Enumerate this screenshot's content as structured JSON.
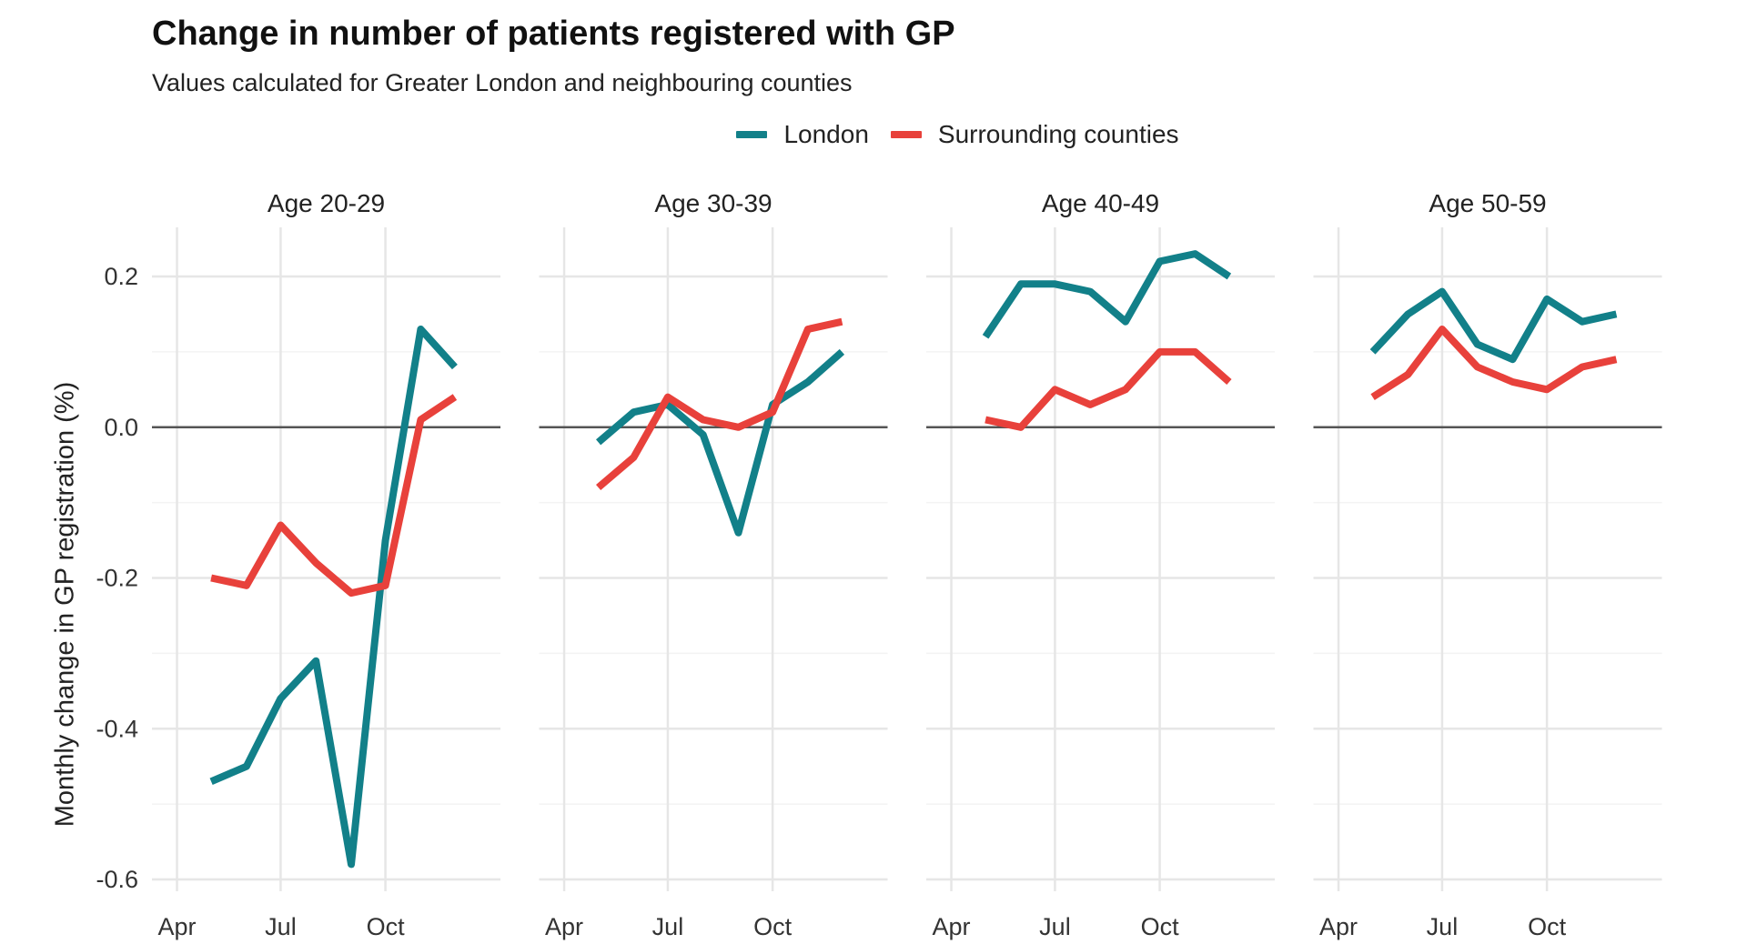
{
  "chart_data": {
    "type": "line",
    "title": "Change in number of patients registered with GP",
    "subtitle": "Values calculated for Greater London and neighbouring counties",
    "ylabel": "Monthly change in GP registration (%)",
    "xlabel": "",
    "ylim": [
      -0.62,
      0.25
    ],
    "y_ticks": [
      -0.6,
      -0.4,
      -0.2,
      0.0,
      0.2
    ],
    "y_tick_labels": [
      "-0.6",
      "-0.4",
      "-0.2",
      "0.0",
      "0.2"
    ],
    "x_ticks": [
      "Apr",
      "Jul",
      "Oct"
    ],
    "x_domain": [
      "2020-03-10",
      "2021-01-10"
    ],
    "x": [
      "2020-05-01",
      "2020-06-01",
      "2020-07-01",
      "2020-08-01",
      "2020-09-01",
      "2020-10-01",
      "2020-11-01",
      "2020-12-01"
    ],
    "legend_position": "top",
    "grid": true,
    "colors": {
      "London": "#128089",
      "Surrounding counties": "#e8413b"
    },
    "facets": [
      {
        "label": "Age 20-29",
        "series": [
          {
            "name": "London",
            "values": [
              -0.47,
              -0.45,
              -0.36,
              -0.31,
              -0.58,
              -0.15,
              0.13,
              0.08
            ]
          },
          {
            "name": "Surrounding counties",
            "values": [
              -0.2,
              -0.21,
              -0.13,
              -0.18,
              -0.22,
              -0.21,
              0.01,
              0.04
            ]
          }
        ]
      },
      {
        "label": "Age 30-39",
        "series": [
          {
            "name": "London",
            "values": [
              -0.02,
              0.02,
              0.03,
              -0.01,
              -0.14,
              0.03,
              0.06,
              0.1
            ]
          },
          {
            "name": "Surrounding counties",
            "values": [
              -0.08,
              -0.04,
              0.04,
              0.01,
              0.0,
              0.02,
              0.13,
              0.14
            ]
          }
        ]
      },
      {
        "label": "Age 40-49",
        "series": [
          {
            "name": "London",
            "values": [
              0.12,
              0.19,
              0.19,
              0.18,
              0.14,
              0.22,
              0.23,
              0.2
            ]
          },
          {
            "name": "Surrounding counties",
            "values": [
              0.01,
              0.0,
              0.05,
              0.03,
              0.05,
              0.1,
              0.1,
              0.06
            ]
          }
        ]
      },
      {
        "label": "Age 50-59",
        "series": [
          {
            "name": "London",
            "values": [
              0.1,
              0.15,
              0.18,
              0.11,
              0.09,
              0.17,
              0.14,
              0.15
            ]
          },
          {
            "name": "Surrounding counties",
            "values": [
              0.04,
              0.07,
              0.13,
              0.08,
              0.06,
              0.05,
              0.08,
              0.09
            ]
          }
        ]
      }
    ]
  }
}
